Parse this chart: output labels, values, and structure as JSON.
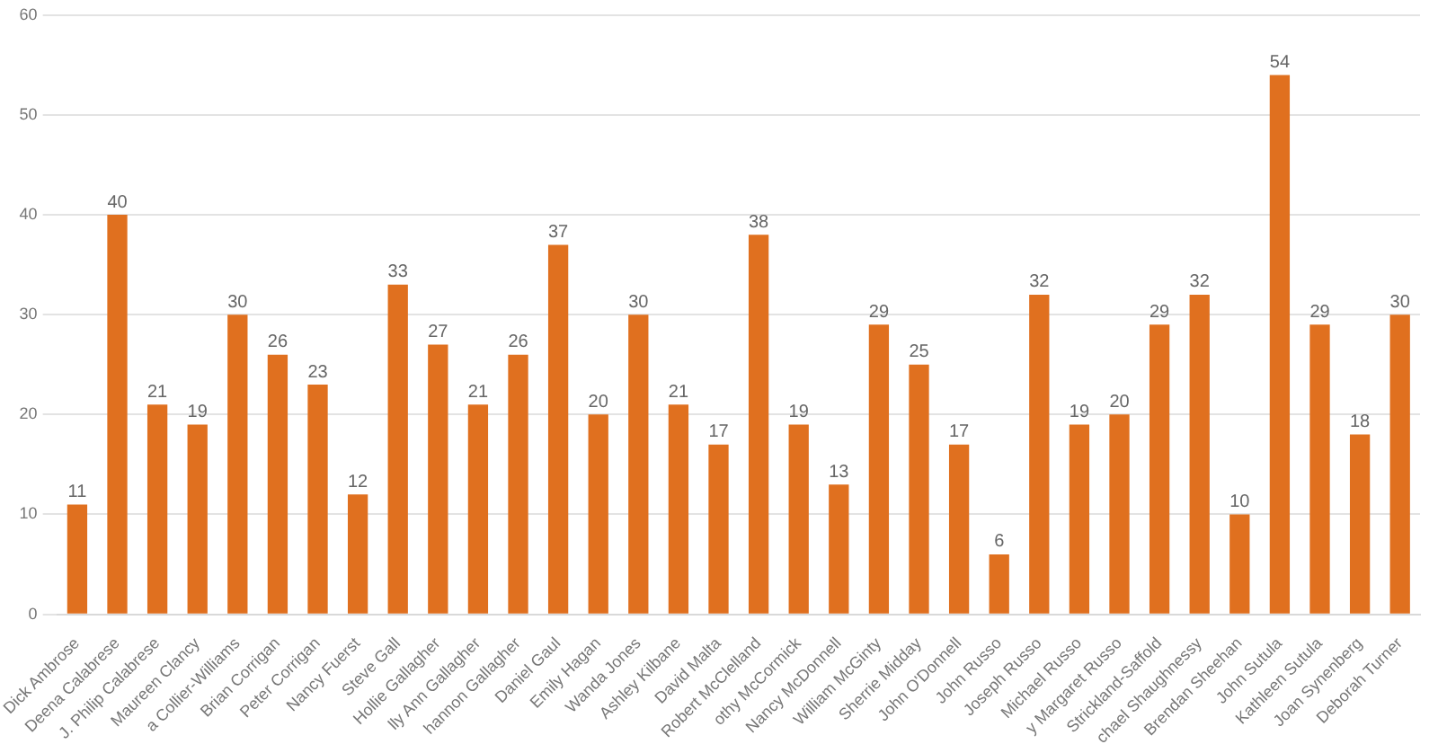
{
  "chart_data": {
    "type": "bar",
    "categories": [
      "Dick Ambrose",
      "Deena Calabrese",
      "J. Philip Calabrese",
      "Maureen Clancy",
      "a Collier-Williams",
      "Brian Corrigan",
      "Peter Corrigan",
      "Nancy Fuerst",
      "Steve Gall",
      "Hollie Gallagher",
      "lly Ann Gallagher",
      "hannon Gallagher",
      "Daniel Gaul",
      "Emily Hagan",
      "Wanda Jones",
      "Ashley Kilbane",
      "David Malta",
      "Robert McClelland",
      "othy McCormick",
      "Nancy McDonnell",
      "William McGinty",
      "Sherrie Midday",
      "John O'Donnell",
      "John Russo",
      "Joseph Russo",
      "Michael Russo",
      "y Margaret Russo",
      "Strickland-Saffold",
      "chael Shaughnessy",
      "Brendan Sheehan",
      "John Sutula",
      "Kathleen Sutula",
      "Joan Synenberg",
      "Deborah Turner"
    ],
    "values": [
      11,
      40,
      21,
      19,
      30,
      26,
      23,
      12,
      33,
      27,
      21,
      26,
      37,
      20,
      30,
      21,
      17,
      38,
      19,
      13,
      29,
      25,
      17,
      6,
      32,
      19,
      20,
      29,
      32,
      10,
      54,
      29,
      18,
      30
    ],
    "color": "#e0701f",
    "ylim": [
      0,
      60
    ],
    "yticks": [
      0,
      10,
      20,
      30,
      40,
      50,
      60
    ],
    "grid": "y",
    "data_labels": true
  }
}
